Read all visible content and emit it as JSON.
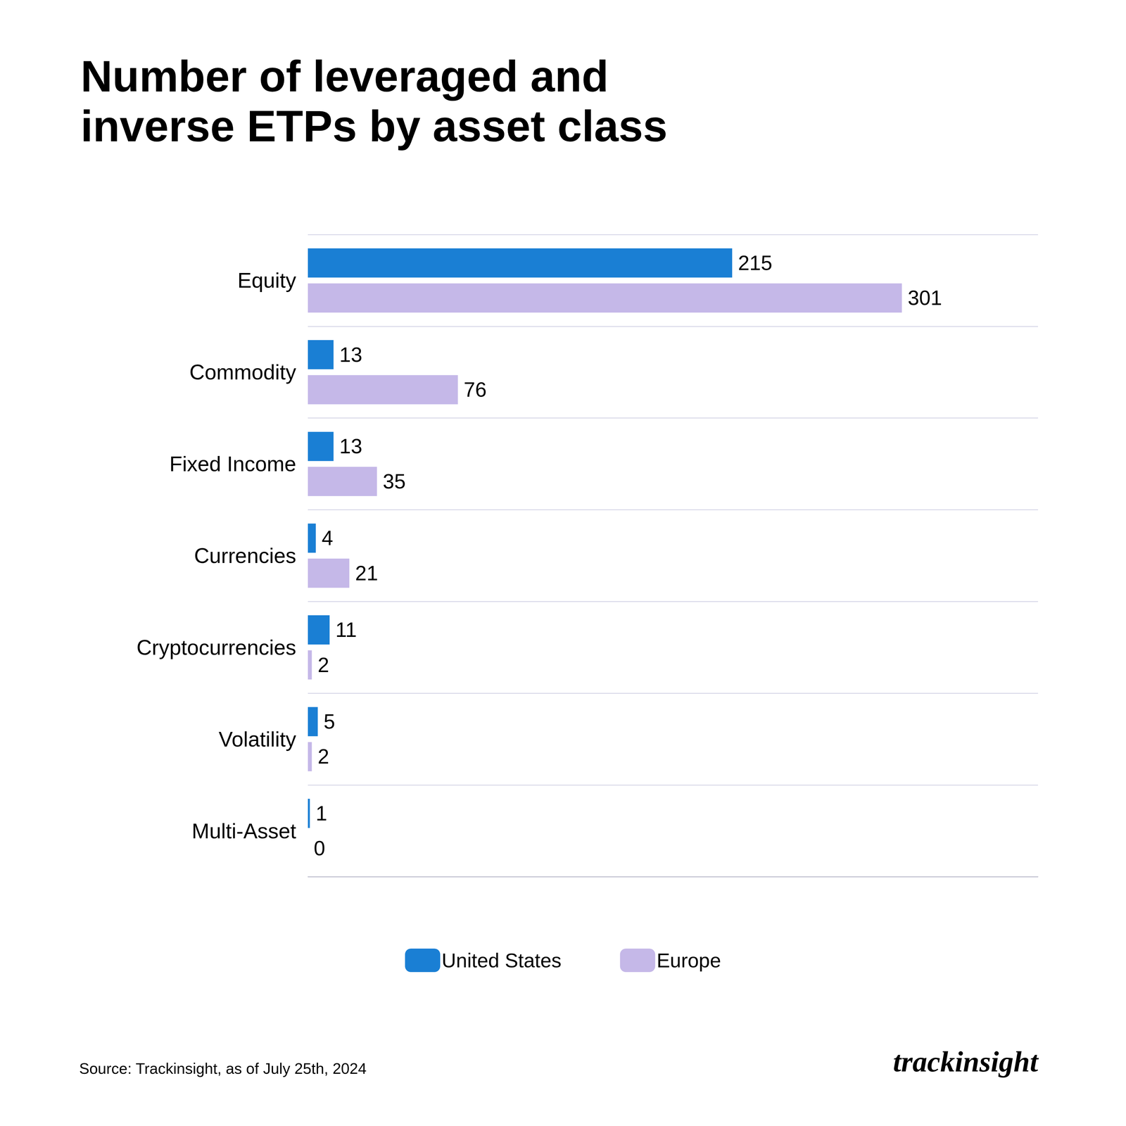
{
  "chart_data": {
    "type": "bar",
    "orientation": "horizontal",
    "title": "Number of leveraged and\ninverse ETPs by asset class",
    "categories": [
      "Equity",
      "Commodity",
      "Fixed Income",
      "Currencies",
      "Cryptocurrencies",
      "Volatility",
      "Multi-Asset"
    ],
    "series": [
      {
        "name": "United States",
        "color": "#1a7fd4",
        "values": [
          215,
          13,
          13,
          4,
          11,
          5,
          1
        ]
      },
      {
        "name": "Europe",
        "color": "#c5b8e8",
        "values": [
          301,
          76,
          35,
          21,
          2,
          2,
          0
        ]
      }
    ],
    "xlim": [
      0,
      370
    ],
    "data_labels": true,
    "tick_labels": "y",
    "grid": true,
    "legend": "bottom",
    "annotations": [
      "Source: Trackinsight, as of July 25th, 2024",
      "trackinsight"
    ]
  }
}
